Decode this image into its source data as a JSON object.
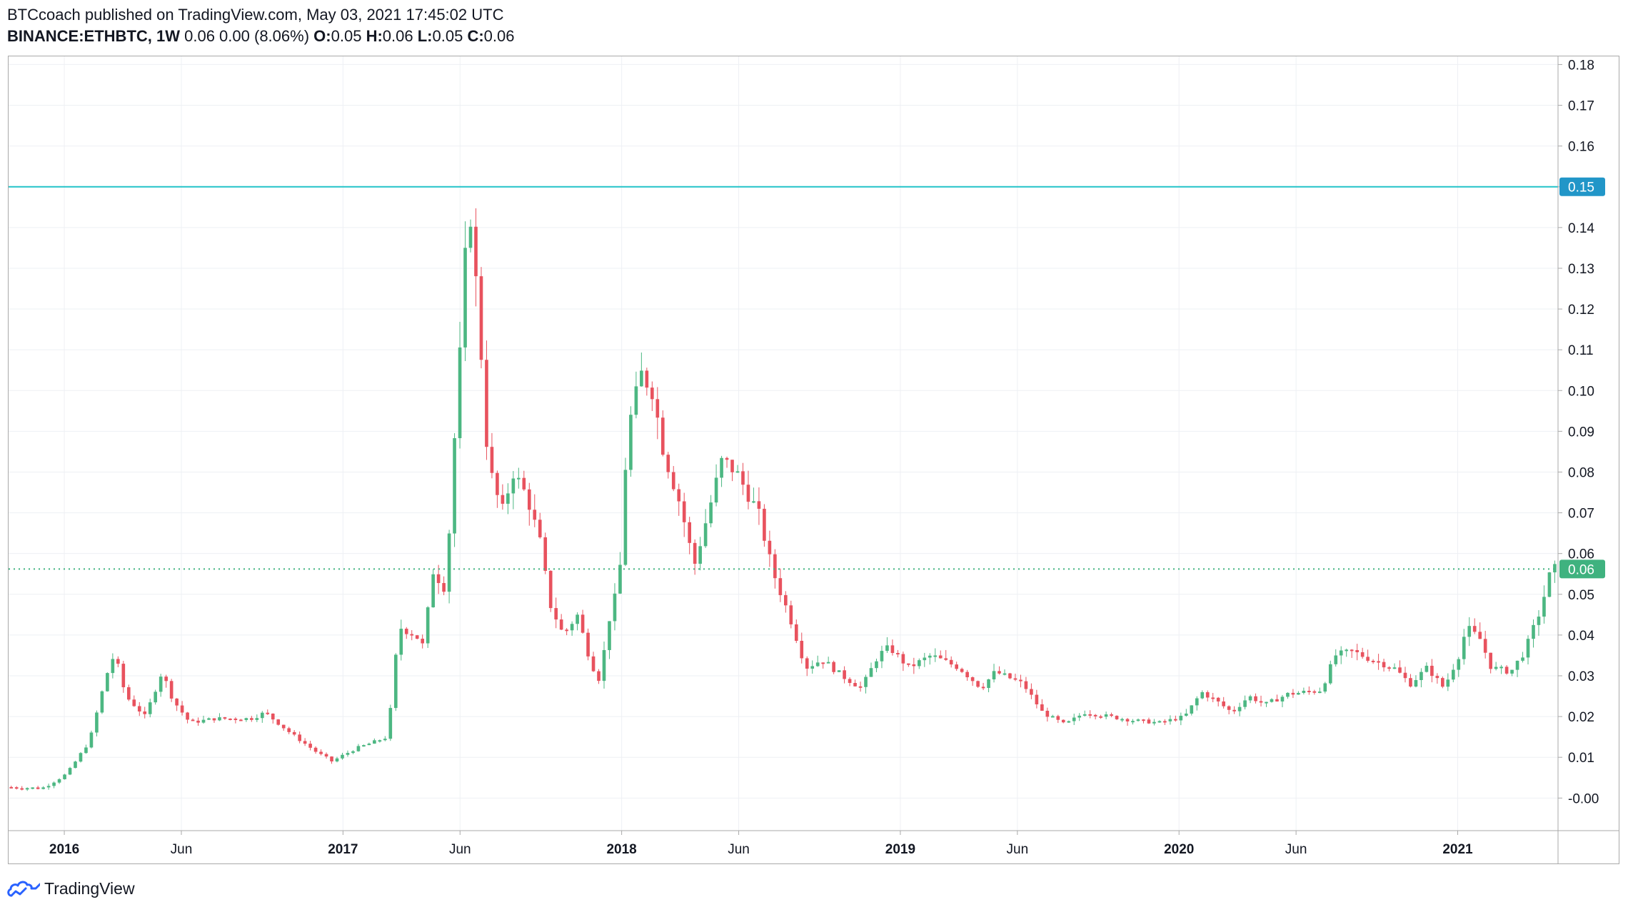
{
  "header": {
    "publisher": "BTCcoach",
    "published_text": "published on TradingView.com, May 03, 2021 17:45:02 UTC",
    "symbol": "BINANCE:ETHBTC, 1W",
    "change_text": "0.06 0.00 (8.06%)",
    "o_label": "O:",
    "o_value": "0.05",
    "h_label": "H:",
    "h_value": "0.06",
    "l_label": "L:",
    "l_value": "0.05",
    "c_label": "C:",
    "c_value": "0.06"
  },
  "footer": {
    "brand": "TradingView"
  },
  "colors": {
    "up": "#4cb782",
    "down": "#e8525e",
    "hline": "#22c3c8",
    "price_badge": "#3fb27f",
    "level_badge": "#2196c8",
    "grid": "#eef0f4",
    "axis_text": "#131722"
  },
  "chart_data": {
    "type": "candlestick",
    "interval": "1W",
    "ylim": [
      -0.008,
      0.182
    ],
    "xlim": [
      2015.8,
      2021.36
    ],
    "y_ticks": [
      "0.18",
      "0.17",
      "0.16",
      "0.15",
      "0.14",
      "0.13",
      "0.12",
      "0.11",
      "0.10",
      "0.09",
      "0.08",
      "0.07",
      "0.06",
      "0.05",
      "0.04",
      "0.03",
      "0.02",
      "0.01",
      "-0.00"
    ],
    "y_tick_values": [
      0.18,
      0.17,
      0.16,
      0.15,
      0.14,
      0.13,
      0.12,
      0.11,
      0.1,
      0.09,
      0.08,
      0.07,
      0.06,
      0.05,
      0.04,
      0.03,
      0.02,
      0.01,
      0.0
    ],
    "x_ticks": [
      {
        "label": "2016",
        "t": 2016.0,
        "bold": true
      },
      {
        "label": "Jun",
        "t": 2016.42,
        "bold": false
      },
      {
        "label": "2017",
        "t": 2017.0,
        "bold": true
      },
      {
        "label": "Jun",
        "t": 2017.42,
        "bold": false
      },
      {
        "label": "2018",
        "t": 2018.0,
        "bold": true
      },
      {
        "label": "Jun",
        "t": 2018.42,
        "bold": false
      },
      {
        "label": "2019",
        "t": 2019.0,
        "bold": true
      },
      {
        "label": "Jun",
        "t": 2019.42,
        "bold": false
      },
      {
        "label": "2020",
        "t": 2020.0,
        "bold": true
      },
      {
        "label": "Jun",
        "t": 2020.42,
        "bold": false
      },
      {
        "label": "2021",
        "t": 2021.0,
        "bold": true
      }
    ],
    "horizontal_level": {
      "value": 0.15,
      "label": "0.15"
    },
    "last_price": {
      "value": 0.0562,
      "label": "0.06"
    },
    "anchors": [
      [
        2015.8,
        0.0027
      ],
      [
        2015.93,
        0.0024
      ],
      [
        2016.02,
        0.006
      ],
      [
        2016.1,
        0.014
      ],
      [
        2016.16,
        0.03
      ],
      [
        2016.19,
        0.0355
      ],
      [
        2016.23,
        0.025
      ],
      [
        2016.3,
        0.02
      ],
      [
        2016.36,
        0.031
      ],
      [
        2016.4,
        0.024
      ],
      [
        2016.46,
        0.0185
      ],
      [
        2016.55,
        0.0195
      ],
      [
        2016.68,
        0.0195
      ],
      [
        2016.73,
        0.021
      ],
      [
        2016.82,
        0.016
      ],
      [
        2016.92,
        0.011
      ],
      [
        2016.97,
        0.009
      ],
      [
        2017.05,
        0.012
      ],
      [
        2017.17,
        0.015
      ],
      [
        2017.21,
        0.042
      ],
      [
        2017.27,
        0.04
      ],
      [
        2017.3,
        0.037
      ],
      [
        2017.33,
        0.056
      ],
      [
        2017.38,
        0.051
      ],
      [
        2017.4,
        0.078
      ],
      [
        2017.44,
        0.12
      ],
      [
        2017.46,
        0.1495
      ],
      [
        2017.5,
        0.115
      ],
      [
        2017.53,
        0.082
      ],
      [
        2017.58,
        0.07
      ],
      [
        2017.62,
        0.08
      ],
      [
        2017.67,
        0.074
      ],
      [
        2017.72,
        0.062
      ],
      [
        2017.75,
        0.048
      ],
      [
        2017.8,
        0.04
      ],
      [
        2017.85,
        0.045
      ],
      [
        2017.9,
        0.033
      ],
      [
        2017.93,
        0.029
      ],
      [
        2017.97,
        0.046
      ],
      [
        2018.0,
        0.052
      ],
      [
        2018.03,
        0.09
      ],
      [
        2018.08,
        0.104
      ],
      [
        2018.12,
        0.1
      ],
      [
        2018.16,
        0.085
      ],
      [
        2018.22,
        0.072
      ],
      [
        2018.27,
        0.057
      ],
      [
        2018.32,
        0.07
      ],
      [
        2018.37,
        0.083
      ],
      [
        2018.42,
        0.08
      ],
      [
        2018.5,
        0.07
      ],
      [
        2018.55,
        0.056
      ],
      [
        2018.62,
        0.043
      ],
      [
        2018.67,
        0.032
      ],
      [
        2018.73,
        0.034
      ],
      [
        2018.8,
        0.03
      ],
      [
        2018.87,
        0.027
      ],
      [
        2018.93,
        0.035
      ],
      [
        2018.97,
        0.037
      ],
      [
        2019.04,
        0.032
      ],
      [
        2019.12,
        0.035
      ],
      [
        2019.22,
        0.032
      ],
      [
        2019.3,
        0.027
      ],
      [
        2019.35,
        0.031
      ],
      [
        2019.45,
        0.028
      ],
      [
        2019.52,
        0.021
      ],
      [
        2019.6,
        0.018
      ],
      [
        2019.67,
        0.021
      ],
      [
        2019.76,
        0.02
      ],
      [
        2019.85,
        0.019
      ],
      [
        2019.94,
        0.0185
      ],
      [
        2020.03,
        0.02
      ],
      [
        2020.09,
        0.026
      ],
      [
        2020.14,
        0.024
      ],
      [
        2020.2,
        0.021
      ],
      [
        2020.26,
        0.025
      ],
      [
        2020.32,
        0.023
      ],
      [
        2020.4,
        0.0255
      ],
      [
        2020.52,
        0.0265
      ],
      [
        2020.57,
        0.035
      ],
      [
        2020.63,
        0.036
      ],
      [
        2020.7,
        0.034
      ],
      [
        2020.78,
        0.032
      ],
      [
        2020.84,
        0.028
      ],
      [
        2020.9,
        0.032
      ],
      [
        2020.96,
        0.027
      ],
      [
        2021.02,
        0.036
      ],
      [
        2021.04,
        0.042
      ],
      [
        2021.09,
        0.039
      ],
      [
        2021.13,
        0.032
      ],
      [
        2021.2,
        0.031
      ],
      [
        2021.25,
        0.036
      ],
      [
        2021.3,
        0.045
      ],
      [
        2021.33,
        0.052
      ],
      [
        2021.345,
        0.0562
      ]
    ]
  }
}
